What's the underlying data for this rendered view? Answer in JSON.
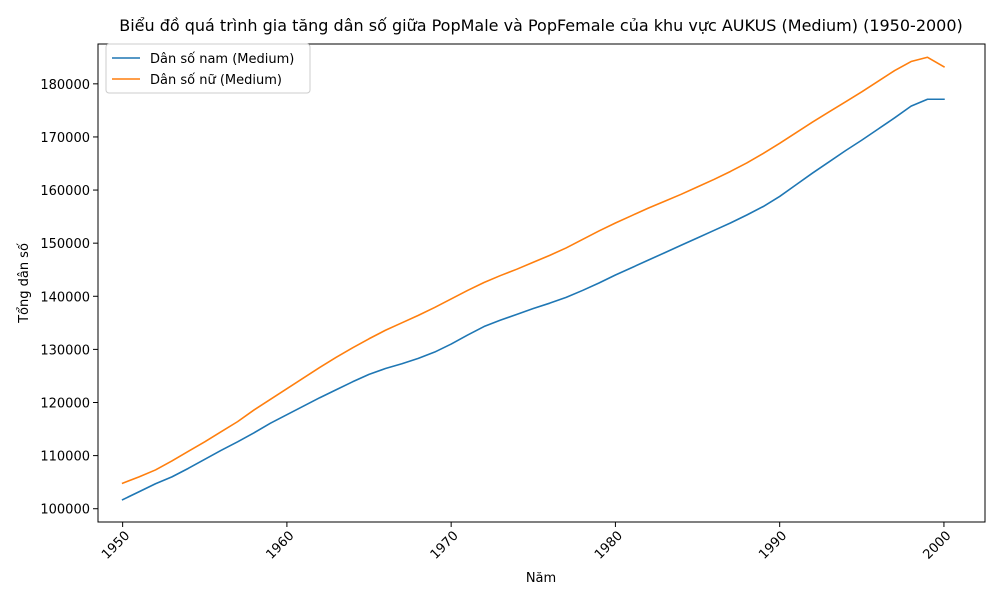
{
  "chart_data": {
    "type": "line",
    "title": "Biểu đồ quá trình gia tăng dân số giữa PopMale và PopFemale của khu vực AUKUS (Medium) (1950-2000)",
    "xlabel": "Năm",
    "ylabel": "Tổng dân số",
    "xlim": [
      1948.5,
      2002.5
    ],
    "ylim": [
      97500,
      187500
    ],
    "xticks": [
      1950,
      1960,
      1970,
      1980,
      1990,
      2000
    ],
    "xtick_labels": [
      "1950",
      "1960",
      "1970",
      "1980",
      "1990",
      "2000"
    ],
    "yticks": [
      100000,
      110000,
      120000,
      130000,
      140000,
      150000,
      160000,
      170000,
      180000
    ],
    "ytick_labels": [
      "100000",
      "110000",
      "120000",
      "130000",
      "140000",
      "150000",
      "160000",
      "170000",
      "180000"
    ],
    "grid": false,
    "legend_position": "top-left",
    "x": [
      1950,
      1951,
      1952,
      1953,
      1954,
      1955,
      1956,
      1957,
      1958,
      1959,
      1960,
      1961,
      1962,
      1963,
      1964,
      1965,
      1966,
      1967,
      1968,
      1969,
      1970,
      1971,
      1972,
      1973,
      1974,
      1975,
      1976,
      1977,
      1978,
      1979,
      1980,
      1981,
      1982,
      1983,
      1984,
      1985,
      1986,
      1987,
      1988,
      1989,
      1990,
      1991,
      1992,
      1993,
      1994,
      1995,
      1996,
      1997,
      1998,
      1999,
      2000
    ],
    "series": [
      {
        "name": "Dân số nam (Medium)",
        "color": "#1f77b4",
        "values": [
          101700,
          103200,
          104700,
          106000,
          107600,
          109300,
          111000,
          112600,
          114300,
          116100,
          117700,
          119300,
          120900,
          122400,
          123900,
          125300,
          126400,
          127300,
          128300,
          129500,
          131000,
          132700,
          134300,
          135500,
          136600,
          137700,
          138700,
          139800,
          141100,
          142500,
          144000,
          145400,
          146800,
          148200,
          149600,
          151000,
          152400,
          153800,
          155300,
          156900,
          158800,
          161000,
          163200,
          165300,
          167400,
          169400,
          171500,
          173600,
          175800,
          177100,
          177100
        ],
        "color_hex": "#1f77b4"
      },
      {
        "name": "Dân số nữ (Medium)",
        "color": "#ff7f0e",
        "values": [
          104800,
          106000,
          107300,
          109000,
          110800,
          112600,
          114500,
          116400,
          118600,
          120600,
          122600,
          124600,
          126600,
          128500,
          130300,
          132000,
          133600,
          135000,
          136400,
          137900,
          139500,
          141100,
          142600,
          143900,
          145100,
          146400,
          147700,
          149100,
          150700,
          152300,
          153800,
          155200,
          156600,
          157900,
          159200,
          160600,
          162000,
          163500,
          165100,
          166900,
          168800,
          170800,
          172800,
          174700,
          176600,
          178500,
          180500,
          182500,
          184200,
          185000,
          183200
        ],
        "color_hex": "#ff7f0e"
      }
    ]
  }
}
